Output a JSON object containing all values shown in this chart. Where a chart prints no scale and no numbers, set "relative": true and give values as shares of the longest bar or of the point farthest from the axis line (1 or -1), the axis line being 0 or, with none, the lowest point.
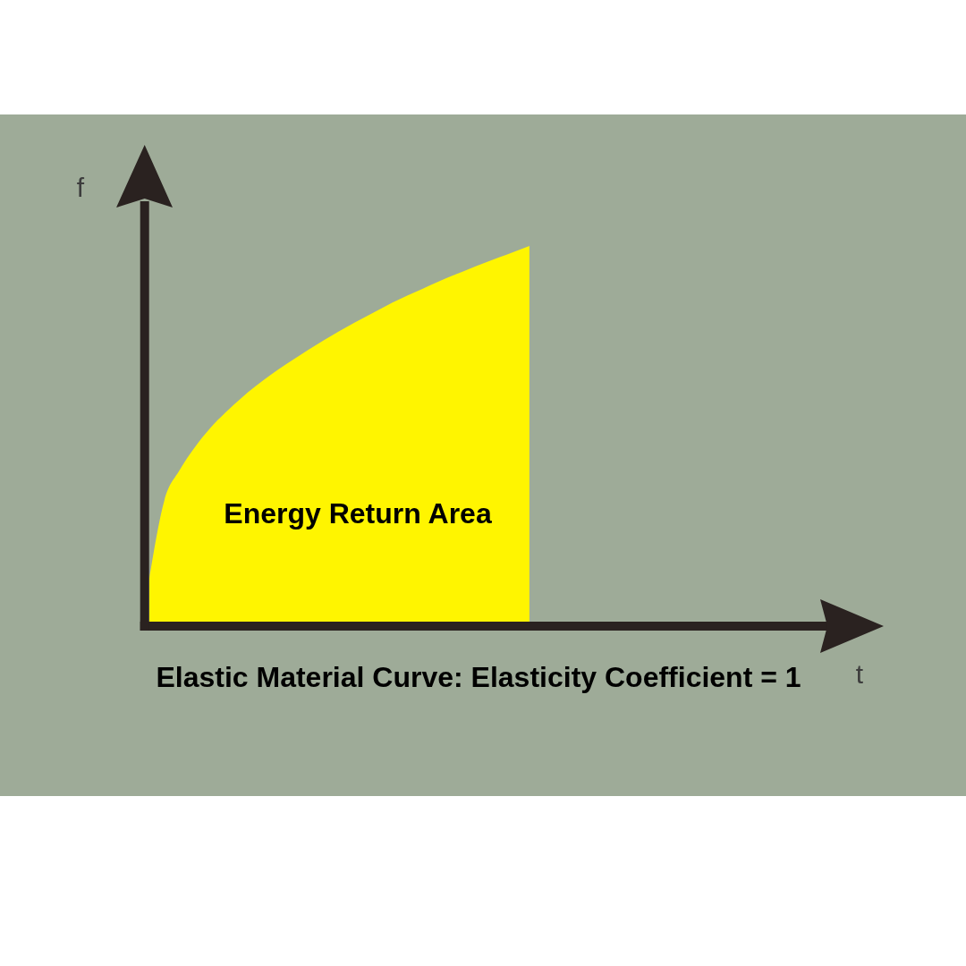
{
  "chart_data": {
    "type": "area",
    "title": "Elastic Material Curve: Elasticity Coefficient = 1",
    "xlabel": "t",
    "ylabel": "f",
    "annotations": [
      "Energy Return Area"
    ],
    "relative": true,
    "categories": [
      null,
      null,
      null,
      null,
      null,
      null,
      null,
      null,
      null,
      null,
      null,
      null,
      null,
      null,
      null,
      null,
      null,
      null,
      null,
      null,
      null,
      null,
      null,
      null,
      null,
      null,
      null,
      null,
      null,
      null,
      null,
      null,
      null,
      null,
      null,
      null,
      null,
      null,
      null,
      null,
      null,
      null,
      null,
      null,
      null
    ],
    "color": "#fff500",
    "values": [
      0.12,
      0.33,
      0.41,
      0.47,
      0.52,
      0.561,
      0.598,
      0.631,
      0.661,
      0.689,
      0.715,
      0.74,
      0.764,
      0.787,
      0.809,
      0.83,
      0.851,
      0.87,
      0.888,
      0.906,
      0.923,
      0.939,
      0.955,
      0.97,
      0.985,
      1,
      null,
      null,
      null,
      null,
      null,
      null,
      null,
      null,
      null,
      null,
      null,
      null,
      null,
      null,
      null,
      null,
      null,
      null,
      null
    ]
  }
}
